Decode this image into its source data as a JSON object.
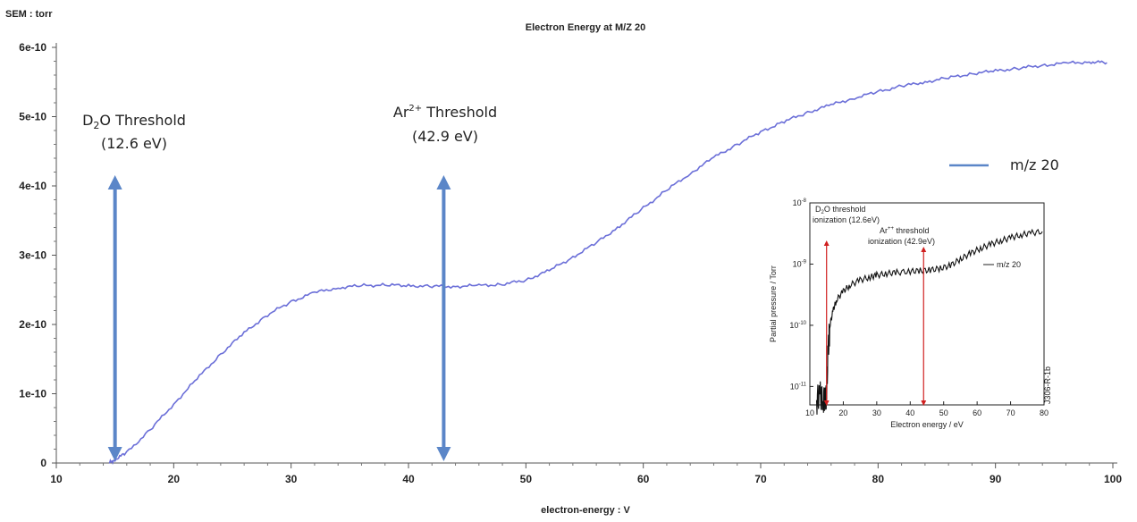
{
  "chart_data": [
    {
      "type": "line",
      "title": "Electron Energy at M/Z 20",
      "ylabel": "SEM : torr",
      "xlabel": "electron-energy : V",
      "xlim": [
        10,
        100
      ],
      "ylim": [
        0,
        6e-10
      ],
      "x_ticks": [
        "10",
        "20",
        "30",
        "40",
        "50",
        "60",
        "70",
        "80",
        "90",
        "100"
      ],
      "y_ticks": [
        "0",
        "1e-10",
        "2e-10",
        "3e-10",
        "4e-10",
        "5e-10",
        "6e-10"
      ],
      "legend": {
        "position": "right",
        "entries": [
          "m/z 20"
        ]
      },
      "series": [
        {
          "name": "m/z 20",
          "color": "#6b6fd8",
          "x": [
            14.5,
            15,
            16,
            18,
            20,
            22,
            24,
            26,
            28,
            30,
            32,
            34,
            36,
            38,
            40,
            42,
            44,
            46,
            48,
            50,
            52,
            54,
            56,
            58,
            60,
            62,
            64,
            66,
            68,
            70,
            72,
            74,
            76,
            78,
            80,
            82,
            84,
            86,
            88,
            90,
            92,
            94,
            96,
            98,
            99.5
          ],
          "y": [
            0,
            5e-12,
            1.5e-11,
            4.8e-11,
            8.5e-11,
            1.22e-10,
            1.57e-10,
            1.88e-10,
            2.14e-10,
            2.33e-10,
            2.46e-10,
            2.53e-10,
            2.56e-10,
            2.57e-10,
            2.56e-10,
            2.55e-10,
            2.55e-10,
            2.56e-10,
            2.58e-10,
            2.64e-10,
            2.78e-10,
            2.97e-10,
            3.18e-10,
            3.42e-10,
            3.68e-10,
            3.94e-10,
            4.18e-10,
            4.41e-10,
            4.6e-10,
            4.78e-10,
            4.93e-10,
            5.06e-10,
            5.17e-10,
            5.27e-10,
            5.36e-10,
            5.44e-10,
            5.5e-10,
            5.56e-10,
            5.62e-10,
            5.66e-10,
            5.7e-10,
            5.74e-10,
            5.77e-10,
            5.79e-10,
            5.78e-10
          ]
        }
      ],
      "annotations": [
        {
          "x": 15,
          "label_main": "D",
          "label_sub": "2",
          "label_rest": "O Threshold",
          "label_value": "(12.6 eV)"
        },
        {
          "x": 43,
          "label_main": "Ar",
          "label_sup": "2+",
          "label_rest": " Threshold",
          "label_value": "(42.9 eV)"
        }
      ]
    },
    {
      "type": "line",
      "scale": "log",
      "xlabel": "Electron energy / eV",
      "ylabel": "Partial pressure / Torr",
      "xlim": [
        10,
        80
      ],
      "ylim": [
        5e-12,
        1e-08
      ],
      "x_ticks": [
        "10",
        "20",
        "30",
        "40",
        "50",
        "60",
        "70",
        "80"
      ],
      "y_ticks_base": [
        "10",
        "10",
        "10",
        "10"
      ],
      "y_ticks_exp": [
        "-8",
        "-9",
        "-10",
        "-11"
      ],
      "legend": {
        "position": "right",
        "entries": [
          "m/z 20"
        ]
      },
      "side_text": "J306-R-1b",
      "series": [
        {
          "name": "m/z 20",
          "color": "#111111",
          "x": [
            12,
            13,
            14,
            14.6,
            15,
            15.5,
            16,
            17,
            18,
            20,
            22,
            25,
            28,
            30,
            33,
            36,
            40,
            43,
            46,
            49,
            52,
            55,
            58,
            61,
            64,
            67,
            70,
            73,
            76,
            79.5
          ],
          "y": [
            6e-12,
            7e-12,
            6.5e-12,
            5.5e-12,
            8e-12,
            4e-11,
            1e-10,
            1.8e-10,
            2.6e-10,
            3.6e-10,
            4.5e-10,
            5.5e-10,
            6.1e-10,
            6.6e-10,
            7e-10,
            7.3e-10,
            7.6e-10,
            7.8e-10,
            8e-10,
            8.5e-10,
            9.5e-10,
            1.2e-09,
            1.5e-09,
            1.8e-09,
            2.1e-09,
            2.4e-09,
            2.7e-09,
            3e-09,
            3.2e-09,
            3.4e-09
          ]
        }
      ],
      "annotations": [
        {
          "x": 15,
          "label_line1_main": "D",
          "label_line1_sub": "2",
          "label_line1_rest": "O threshold",
          "label_line2": "ionization (12.6eV)"
        },
        {
          "x": 44,
          "label_line1_main": "Ar",
          "label_line1_sup": "++",
          "label_line1_rest": " threshold",
          "label_line2": "ionization (42.9eV)"
        }
      ]
    }
  ]
}
